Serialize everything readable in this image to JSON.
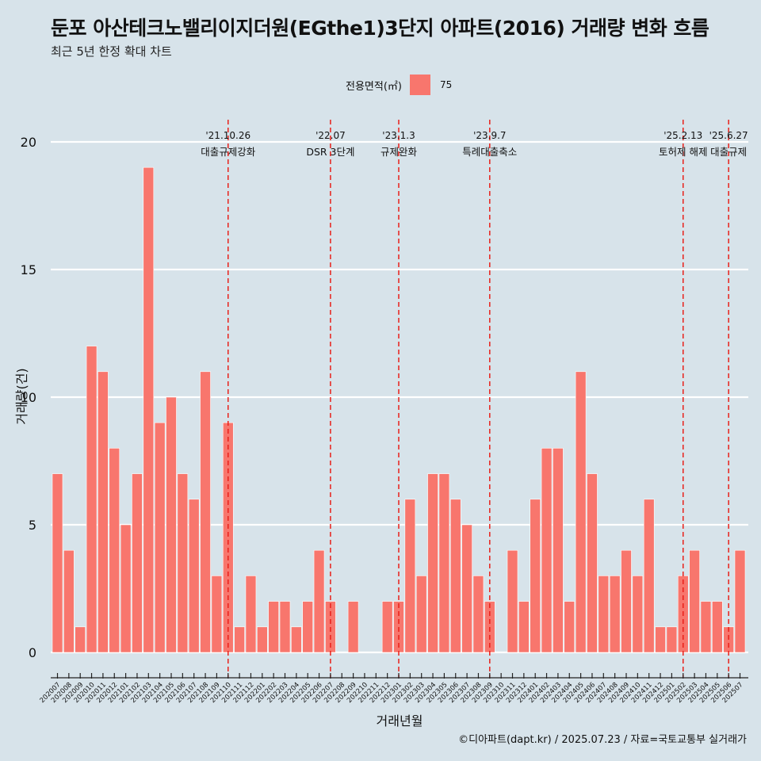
{
  "chart_data": {
    "type": "bar",
    "title": "둔포 아산테크노밸리이지더원(EGthe1)3단지 아파트(2016) 거래량 변화 흐름",
    "subtitle": "최근 5년 한정 확대 차트",
    "xlabel": "거래년월",
    "ylabel": "거래량(건)",
    "ylim": [
      0,
      20
    ],
    "yticks": [
      0,
      5,
      10,
      15,
      20
    ],
    "grid": true,
    "legend": {
      "title": "전용면적(㎡)",
      "position": "top",
      "color": "#f8766d"
    },
    "categories": [
      "202007",
      "202008",
      "202009",
      "202010",
      "202011",
      "202012",
      "202101",
      "202102",
      "202103",
      "202104",
      "202105",
      "202106",
      "202107",
      "202108",
      "202109",
      "202110",
      "202111",
      "202112",
      "202201",
      "202202",
      "202203",
      "202204",
      "202205",
      "202206",
      "202207",
      "202208",
      "202209",
      "202210",
      "202211",
      "202212",
      "202301",
      "202302",
      "202303",
      "202304",
      "202305",
      "202306",
      "202307",
      "202308",
      "202309",
      "202310",
      "202311",
      "202312",
      "202401",
      "202402",
      "202403",
      "202404",
      "202405",
      "202406",
      "202407",
      "202408",
      "202409",
      "202410",
      "202411",
      "202412",
      "202501",
      "202502",
      "202503",
      "202504",
      "202505",
      "202506",
      "202507"
    ],
    "series": [
      {
        "name": "75",
        "color": "#f8766d",
        "values": [
          7,
          4,
          1,
          12,
          11,
          8,
          5,
          7,
          19,
          9,
          10,
          7,
          6,
          11,
          3,
          9,
          1,
          3,
          1,
          2,
          2,
          1,
          2,
          4,
          2,
          0,
          2,
          0,
          0,
          2,
          2,
          6,
          3,
          7,
          7,
          6,
          5,
          3,
          2,
          0,
          4,
          2,
          6,
          8,
          8,
          2,
          11,
          7,
          3,
          3,
          4,
          3,
          6,
          1,
          1,
          3,
          4,
          2,
          2,
          1,
          4
        ]
      }
    ],
    "events": [
      {
        "at": "202110",
        "date": "'21.10.26",
        "label": "대출규제강화"
      },
      {
        "at": "202207",
        "date": "'22.07",
        "label": "DSR 3단계"
      },
      {
        "at": "202301",
        "date": "'23.1.3",
        "label": "규제완화"
      },
      {
        "at": "202309",
        "date": "'23.9.7",
        "label": "특례대출축소"
      },
      {
        "at": "202502",
        "date": "'25.2.13",
        "label": "토허제 해제"
      },
      {
        "at": "202506",
        "date": "'25.6.27",
        "label": "대출규제"
      }
    ],
    "caption": "©디아파트(dapt.kr) / 2025.07.23 / 자료=국토교통부 실거래가"
  }
}
